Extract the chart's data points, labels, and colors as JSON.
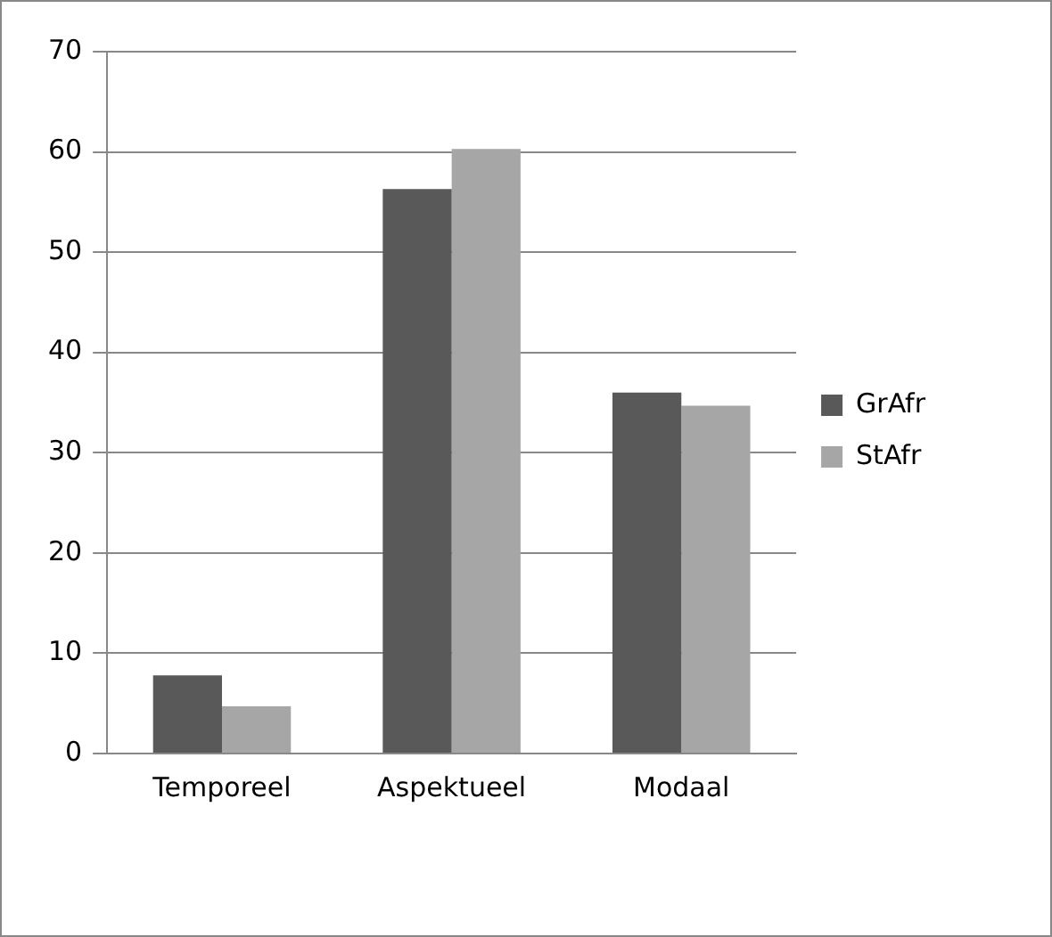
{
  "chart_data": {
    "type": "bar",
    "categories": [
      "Temporeel",
      "Aspektueel",
      "Modaal"
    ],
    "series": [
      {
        "name": "GrAfr",
        "color": "#595959",
        "values": [
          7.8,
          56.3,
          36.0
        ]
      },
      {
        "name": "StAfr",
        "color": "#a6a6a6",
        "values": [
          4.7,
          60.3,
          34.7
        ]
      }
    ],
    "ylim": [
      0,
      70
    ],
    "yticks": [
      0,
      10,
      20,
      30,
      40,
      50,
      60,
      70
    ],
    "grid": "y",
    "legend": "right"
  }
}
